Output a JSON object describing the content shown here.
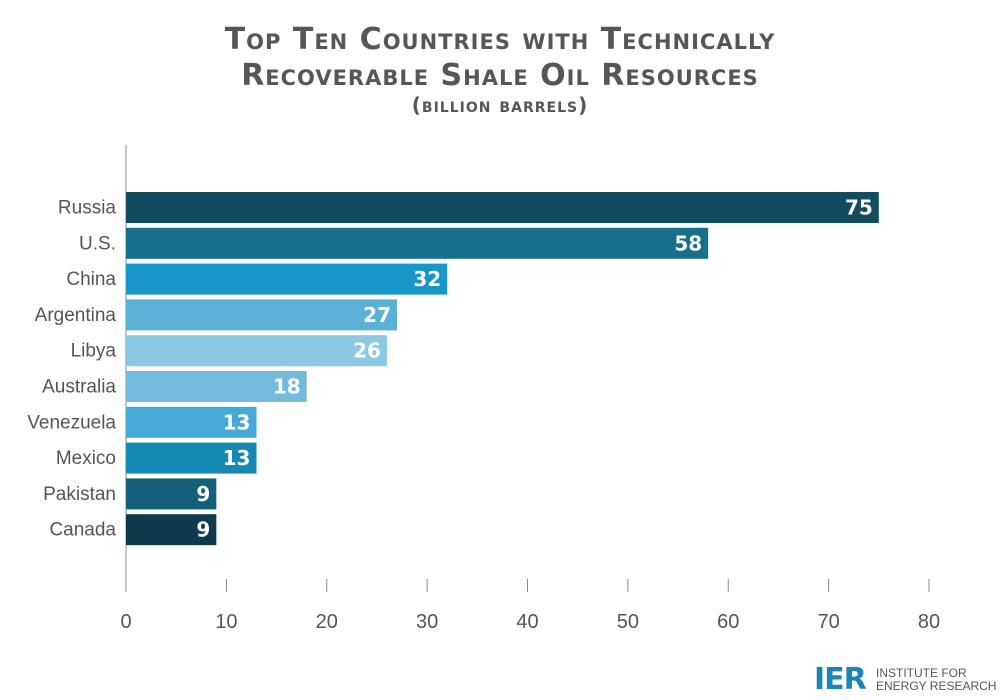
{
  "chart_data": {
    "type": "bar",
    "orientation": "horizontal",
    "title": "Top Ten Countries with Technically Recoverable Shale Oil Resources",
    "title_lines": [
      "Top Ten Countries with Technically",
      "Recoverable Shale Oil Resources"
    ],
    "subtitle": "(billion barrels)",
    "categories": [
      "Russia",
      "U.S.",
      "China",
      "Argentina",
      "Libya",
      "Australia",
      "Venezuela",
      "Mexico",
      "Pakistan",
      "Canada"
    ],
    "values": [
      75,
      58,
      32,
      27,
      26,
      18,
      13,
      13,
      9,
      9
    ],
    "data_labels": [
      "75",
      "58",
      "32",
      "27",
      "26",
      "18",
      "13",
      "13",
      "9",
      "9"
    ],
    "bar_colors": [
      "#134b5f",
      "#176f8c",
      "#1895c9",
      "#5bb0d6",
      "#89c9e3",
      "#72bbdc",
      "#46aad8",
      "#1589b2",
      "#14607a",
      "#0e3b4c"
    ],
    "xlim": [
      0,
      80
    ],
    "xticks": [
      0,
      10,
      20,
      30,
      40,
      50,
      60,
      70,
      80
    ],
    "xtick_labels": [
      "0",
      "10",
      "20",
      "30",
      "40",
      "50",
      "60",
      "70",
      "80"
    ],
    "xlabel": "",
    "ylabel": "",
    "grid": false,
    "legend": "none"
  },
  "branding": {
    "mark": "IER",
    "line1": "INSTITUTE FOR",
    "line2": "ENERGY RESEARCH",
    "color": "#1a86b8"
  }
}
